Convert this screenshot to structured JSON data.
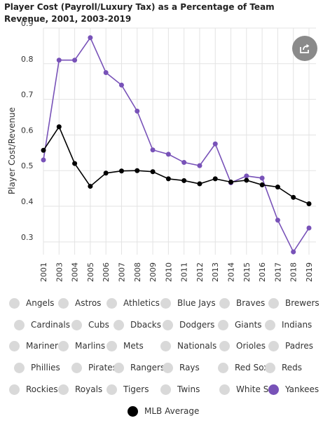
{
  "title": "Player Cost (Payroll/Luxury Tax) as a Percentage of Team Revenue, 2001, 2003-2019",
  "share_icon": "share-icon",
  "legend": {
    "rows": [
      [
        "Angels",
        "Astros",
        "Athletics",
        "Blue Jays",
        "Braves",
        "Brewers"
      ],
      [
        "Cardinals",
        "Cubs",
        "Dbacks",
        "Dodgers",
        "Giants",
        "Indians"
      ],
      [
        "Mariners",
        "Marlins",
        "Mets",
        "Nationals",
        "Orioles",
        "Padres"
      ],
      [
        "Phillies",
        "Pirates",
        "Rangers",
        "Rays",
        "Red Sox",
        "Reds"
      ],
      [
        "Rockies",
        "Royals",
        "Tigers",
        "Twins",
        "White Sox",
        "Yankees"
      ],
      [
        "MLB Average"
      ]
    ],
    "active": [
      "Yankees",
      "MLB Average"
    ]
  },
  "chart_data": {
    "type": "line",
    "title": "Player Cost (Payroll/Luxury Tax) as a Percentage of Team Revenue, 2001, 2003-2019",
    "xlabel": "",
    "ylabel": "Player Cost/Revenue",
    "categories": [
      "2001",
      "2003",
      "2004",
      "2005",
      "2006",
      "2007",
      "2008",
      "2009",
      "2010",
      "2011",
      "2012",
      "2013",
      "2014",
      "2015",
      "2016",
      "2017",
      "2018",
      "2019"
    ],
    "yticks": [
      "0.3",
      "0.4",
      "0.5",
      "0.6",
      "0.7",
      "0.8",
      "0.9"
    ],
    "ylim": [
      0.28,
      0.9
    ],
    "grid": true,
    "legend_position": "bottom",
    "series": [
      {
        "name": "Yankees",
        "color": "#7852b8",
        "values": [
          0.53,
          0.81,
          0.81,
          0.873,
          0.775,
          0.74,
          0.667,
          0.558,
          0.546,
          0.523,
          0.514,
          0.575,
          0.466,
          0.485,
          0.479,
          0.361,
          0.272,
          0.339
        ]
      },
      {
        "name": "MLB Average",
        "color": "#000000",
        "values": [
          0.557,
          0.623,
          0.52,
          0.456,
          0.493,
          0.499,
          0.5,
          0.497,
          0.477,
          0.472,
          0.463,
          0.477,
          0.468,
          0.473,
          0.46,
          0.454,
          0.425,
          0.407
        ]
      }
    ]
  }
}
